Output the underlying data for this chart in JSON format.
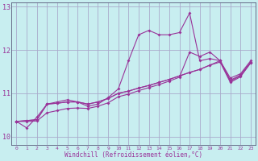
{
  "xlabel": "Windchill (Refroidissement éolien,°C)",
  "bg_color": "#c8eef0",
  "line_color": "#993399",
  "grid_color": "#aaaacc",
  "x_data": [
    0,
    1,
    2,
    3,
    4,
    5,
    6,
    7,
    8,
    9,
    10,
    11,
    12,
    13,
    14,
    15,
    16,
    17,
    18,
    19,
    20,
    21,
    22,
    23
  ],
  "series1": [
    10.35,
    10.2,
    10.45,
    10.75,
    10.8,
    10.85,
    10.8,
    10.7,
    10.75,
    10.9,
    11.1,
    11.75,
    12.35,
    12.45,
    12.35,
    12.35,
    12.4,
    12.85,
    11.75,
    11.8,
    11.75,
    11.35,
    11.45,
    11.75
  ],
  "series2": [
    10.35,
    10.37,
    10.39,
    10.75,
    10.77,
    10.8,
    10.8,
    10.75,
    10.8,
    10.88,
    11.0,
    11.05,
    11.12,
    11.18,
    11.25,
    11.32,
    11.4,
    11.48,
    11.55,
    11.65,
    11.72,
    11.25,
    11.38,
    11.7
  ],
  "series3": [
    10.35,
    10.37,
    10.39,
    10.75,
    10.77,
    10.8,
    10.8,
    10.75,
    10.8,
    10.88,
    11.0,
    11.05,
    11.12,
    11.18,
    11.25,
    11.32,
    11.4,
    11.48,
    11.55,
    11.65,
    11.75,
    11.3,
    11.42,
    11.72
  ],
  "series4": [
    10.35,
    10.35,
    10.36,
    10.55,
    10.6,
    10.65,
    10.66,
    10.65,
    10.7,
    10.78,
    10.92,
    10.98,
    11.06,
    11.13,
    11.2,
    11.28,
    11.37,
    11.95,
    11.85,
    11.95,
    11.75,
    11.28,
    11.4,
    11.7
  ],
  "ylim": [
    9.8,
    13.1
  ],
  "yticks": [
    10,
    11,
    12,
    13
  ],
  "xticks": [
    0,
    1,
    2,
    3,
    4,
    5,
    6,
    7,
    8,
    9,
    10,
    11,
    12,
    13,
    14,
    15,
    16,
    17,
    18,
    19,
    20,
    21,
    22,
    23
  ],
  "figsize": [
    3.2,
    2.0
  ],
  "dpi": 100
}
